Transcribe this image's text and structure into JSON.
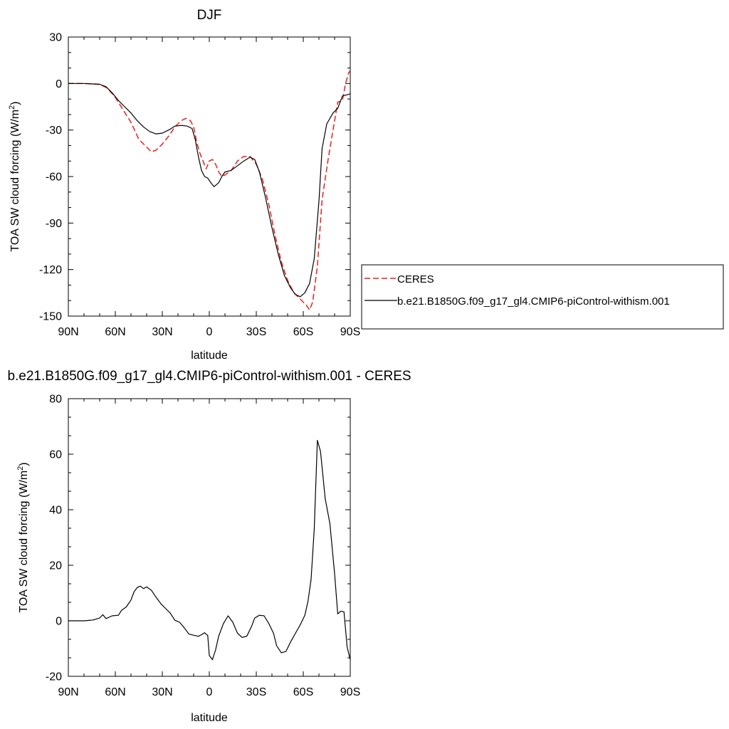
{
  "chart_data": [
    {
      "type": "line",
      "title": "DJF",
      "xlabel": "latitude",
      "ylabel": "TOA SW cloud forcing (W/m",
      "ylabel_sup": "2",
      "ylabel_end": ")",
      "xlim": [
        90,
        -90
      ],
      "ylim": [
        -150,
        30
      ],
      "x_ticks": [
        90,
        60,
        30,
        0,
        -30,
        -60,
        -90
      ],
      "x_tick_labels": [
        "90N",
        "60N",
        "30N",
        "0",
        "30S",
        "60S",
        "90S"
      ],
      "y_ticks": [
        -150,
        -120,
        -90,
        -60,
        -30,
        0,
        30
      ],
      "y_tick_labels": [
        "-150",
        "-120",
        "-90",
        "-60",
        "-30",
        "0",
        "30"
      ],
      "grid": false,
      "legend_position": "right",
      "series": [
        {
          "name": "CERES",
          "color": "#e8201c",
          "dash": "dashed",
          "points": [
            [
              90,
              0
            ],
            [
              80,
              0
            ],
            [
              70,
              -0.5
            ],
            [
              65,
              -3
            ],
            [
              60,
              -9
            ],
            [
              55,
              -17
            ],
            [
              50,
              -25
            ],
            [
              45,
              -36
            ],
            [
              40,
              -41
            ],
            [
              37,
              -44
            ],
            [
              34,
              -43
            ],
            [
              30,
              -39
            ],
            [
              26,
              -34
            ],
            [
              22,
              -28
            ],
            [
              18,
              -24
            ],
            [
              15,
              -22.5
            ],
            [
              12,
              -24
            ],
            [
              10,
              -28
            ],
            [
              8,
              -38
            ],
            [
              6,
              -45
            ],
            [
              4,
              -50
            ],
            [
              2,
              -55
            ],
            [
              0,
              -50
            ],
            [
              -2,
              -49
            ],
            [
              -4,
              -52
            ],
            [
              -6,
              -57
            ],
            [
              -8,
              -60
            ],
            [
              -10,
              -59
            ],
            [
              -14,
              -56
            ],
            [
              -18,
              -50
            ],
            [
              -22,
              -47
            ],
            [
              -26,
              -47
            ],
            [
              -30,
              -52
            ],
            [
              -34,
              -62
            ],
            [
              -38,
              -78
            ],
            [
              -42,
              -98
            ],
            [
              -46,
              -115
            ],
            [
              -50,
              -127
            ],
            [
              -54,
              -135
            ],
            [
              -58,
              -139
            ],
            [
              -62,
              -143
            ],
            [
              -64,
              -146
            ],
            [
              -66,
              -141
            ],
            [
              -69,
              -118
            ],
            [
              -72,
              -75
            ],
            [
              -76,
              -48
            ],
            [
              -80,
              -24
            ],
            [
              -82,
              -12
            ],
            [
              -85,
              -11
            ],
            [
              -87,
              0
            ],
            [
              -89,
              7
            ],
            [
              -91,
              9
            ],
            [
              -93,
              8.5
            ]
          ]
        },
        {
          "name": "b.e21.B1850G.f09_g17_gl4.CMIP6-piControl-withism.001",
          "color": "#000000",
          "dash": "solid",
          "points": [
            [
              90,
              0
            ],
            [
              80,
              0
            ],
            [
              70,
              -0.5
            ],
            [
              66,
              -2
            ],
            [
              62,
              -6
            ],
            [
              58,
              -11
            ],
            [
              54,
              -15
            ],
            [
              50,
              -19
            ],
            [
              46,
              -24
            ],
            [
              42,
              -28
            ],
            [
              38,
              -31
            ],
            [
              34,
              -32.5
            ],
            [
              30,
              -32
            ],
            [
              26,
              -30
            ],
            [
              22,
              -27.5
            ],
            [
              18,
              -27
            ],
            [
              14,
              -27.5
            ],
            [
              11,
              -29
            ],
            [
              9,
              -36
            ],
            [
              7,
              -47
            ],
            [
              5,
              -56
            ],
            [
              3,
              -60
            ],
            [
              1,
              -61
            ],
            [
              -1,
              -64
            ],
            [
              -3,
              -66.5
            ],
            [
              -6,
              -64
            ],
            [
              -8,
              -60
            ],
            [
              -10,
              -57
            ],
            [
              -14,
              -56
            ],
            [
              -18,
              -53
            ],
            [
              -22,
              -50
            ],
            [
              -26,
              -47.5
            ],
            [
              -29,
              -49
            ],
            [
              -32,
              -57
            ],
            [
              -36,
              -74
            ],
            [
              -40,
              -93
            ],
            [
              -44,
              -110
            ],
            [
              -48,
              -124
            ],
            [
              -52,
              -132
            ],
            [
              -55,
              -136
            ],
            [
              -58,
              -137.5
            ],
            [
              -61,
              -135
            ],
            [
              -64,
              -129
            ],
            [
              -67,
              -113
            ],
            [
              -70,
              -76
            ],
            [
              -72,
              -42
            ],
            [
              -75,
              -26
            ],
            [
              -79,
              -19
            ],
            [
              -82,
              -16
            ],
            [
              -85,
              -8
            ],
            [
              -89,
              -7
            ],
            [
              -93,
              -5
            ],
            [
              -97,
              -4
            ]
          ]
        }
      ]
    },
    {
      "type": "line",
      "title": "b.e21.B1850G.f09_g17_gl4.CMIP6-piControl-withism.001 - CERES",
      "xlabel": "latitude",
      "ylabel": "TOA SW cloud forcing (W/m",
      "ylabel_sup": "2",
      "ylabel_end": ")",
      "xlim": [
        90,
        -90
      ],
      "ylim": [
        -20,
        80
      ],
      "x_ticks": [
        90,
        60,
        30,
        0,
        -30,
        -60,
        -90
      ],
      "x_tick_labels": [
        "90N",
        "60N",
        "30N",
        "0",
        "30S",
        "60S",
        "90S"
      ],
      "y_ticks": [
        -20,
        0,
        20,
        40,
        60,
        80
      ],
      "y_tick_labels": [
        "-20",
        "0",
        "20",
        "40",
        "60",
        "80"
      ],
      "grid": false,
      "series": [
        {
          "color": "#000000",
          "dash": "solid",
          "points": [
            [
              90,
              0
            ],
            [
              80,
              0
            ],
            [
              74,
              0.3
            ],
            [
              70,
              1
            ],
            [
              68,
              2.2
            ],
            [
              66,
              0.8
            ],
            [
              62,
              1.8
            ],
            [
              58,
              2
            ],
            [
              56,
              3.8
            ],
            [
              53,
              5
            ],
            [
              50,
              7.5
            ],
            [
              48,
              10.5
            ],
            [
              46,
              12
            ],
            [
              44,
              12.5
            ],
            [
              42,
              11.6
            ],
            [
              40,
              12.2
            ],
            [
              37,
              11
            ],
            [
              34,
              8.5
            ],
            [
              31,
              6.2
            ],
            [
              28,
              4.5
            ],
            [
              25,
              2.8
            ],
            [
              22,
              0.2
            ],
            [
              19,
              -0.5
            ],
            [
              16,
              -2.5
            ],
            [
              13,
              -4.8
            ],
            [
              10,
              -5.2
            ],
            [
              7,
              -5.6
            ],
            [
              5,
              -5
            ],
            [
              3,
              -4.3
            ],
            [
              1,
              -5.3
            ],
            [
              0,
              -12.5
            ],
            [
              -2,
              -14
            ],
            [
              -4,
              -10.5
            ],
            [
              -6,
              -5.5
            ],
            [
              -9,
              -1
            ],
            [
              -12,
              1.8
            ],
            [
              -15,
              -0.5
            ],
            [
              -18,
              -4.5
            ],
            [
              -21,
              -6
            ],
            [
              -24,
              -5.5
            ],
            [
              -27,
              -2
            ],
            [
              -29,
              1
            ],
            [
              -32,
              2
            ],
            [
              -35,
              1.8
            ],
            [
              -38,
              -1
            ],
            [
              -41,
              -4.5
            ],
            [
              -43,
              -9
            ],
            [
              -46,
              -11.5
            ],
            [
              -49,
              -11
            ],
            [
              -52,
              -7.5
            ],
            [
              -55,
              -4.5
            ],
            [
              -58,
              -1.5
            ],
            [
              -61,
              2
            ],
            [
              -63,
              7
            ],
            [
              -65,
              15
            ],
            [
              -67,
              33
            ],
            [
              -69,
              65
            ],
            [
              -71,
              61
            ],
            [
              -74,
              44
            ],
            [
              -77,
              35
            ],
            [
              -80,
              17
            ],
            [
              -82,
              2.5
            ],
            [
              -84,
              3.5
            ],
            [
              -86,
              3.2
            ],
            [
              -88,
              -9.5
            ],
            [
              -90,
              -14
            ],
            [
              -93,
              -12.5
            ]
          ]
        }
      ]
    }
  ]
}
